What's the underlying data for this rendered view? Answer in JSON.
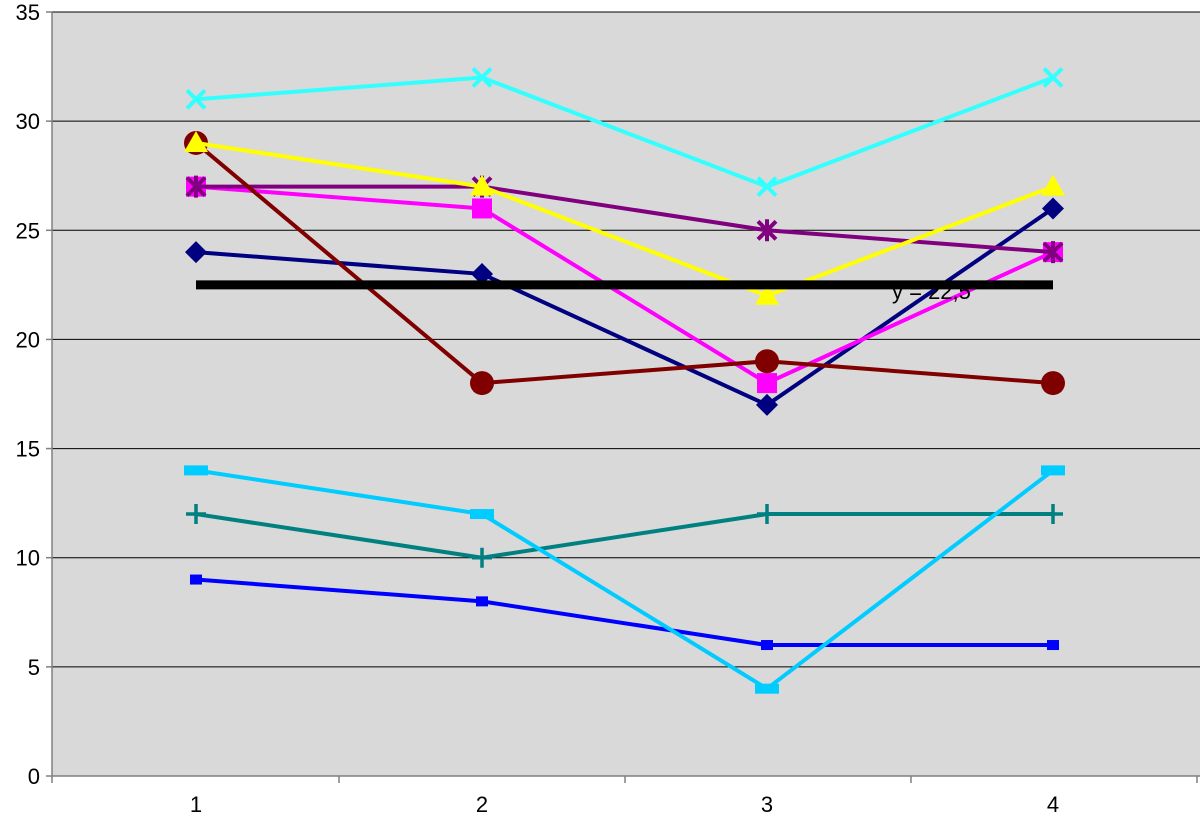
{
  "chart_data": {
    "type": "line",
    "x": [
      1,
      2,
      3,
      4
    ],
    "x_ticks": [
      "1",
      "2",
      "3",
      "4"
    ],
    "ylim": [
      0,
      35
    ],
    "y_ticks": [
      "0",
      "5",
      "10",
      "15",
      "20",
      "25",
      "30",
      "35"
    ],
    "grid": "horizontal",
    "plot_background": "#d9d9d9",
    "series": [
      {
        "color": "#33ffff",
        "marker": "x",
        "values": [
          31,
          32,
          27,
          32
        ]
      },
      {
        "color": "#ffff00",
        "marker": "triangle",
        "values": [
          29,
          27,
          22,
          27
        ]
      },
      {
        "color": "#800000",
        "marker": "circle",
        "values": [
          29,
          18,
          19,
          18
        ]
      },
      {
        "color": "#800080",
        "marker": "asterisk",
        "values": [
          27,
          27,
          25,
          24
        ]
      },
      {
        "color": "#ff00ff",
        "marker": "square",
        "values": [
          27,
          26,
          18,
          24
        ]
      },
      {
        "color": "#000080",
        "marker": "diamond",
        "values": [
          24,
          23,
          17,
          26
        ]
      },
      {
        "color": "#00ccff",
        "marker": "dash",
        "values": [
          14,
          12,
          4,
          14
        ]
      },
      {
        "color": "#008080",
        "marker": "plus",
        "values": [
          12,
          10,
          12,
          12
        ]
      },
      {
        "color": "#0000ff",
        "marker": "small-square",
        "values": [
          9,
          8,
          6,
          6
        ]
      }
    ],
    "reference_line": {
      "value": 22.5,
      "label": "y = 22,5",
      "color": "#000000"
    }
  }
}
